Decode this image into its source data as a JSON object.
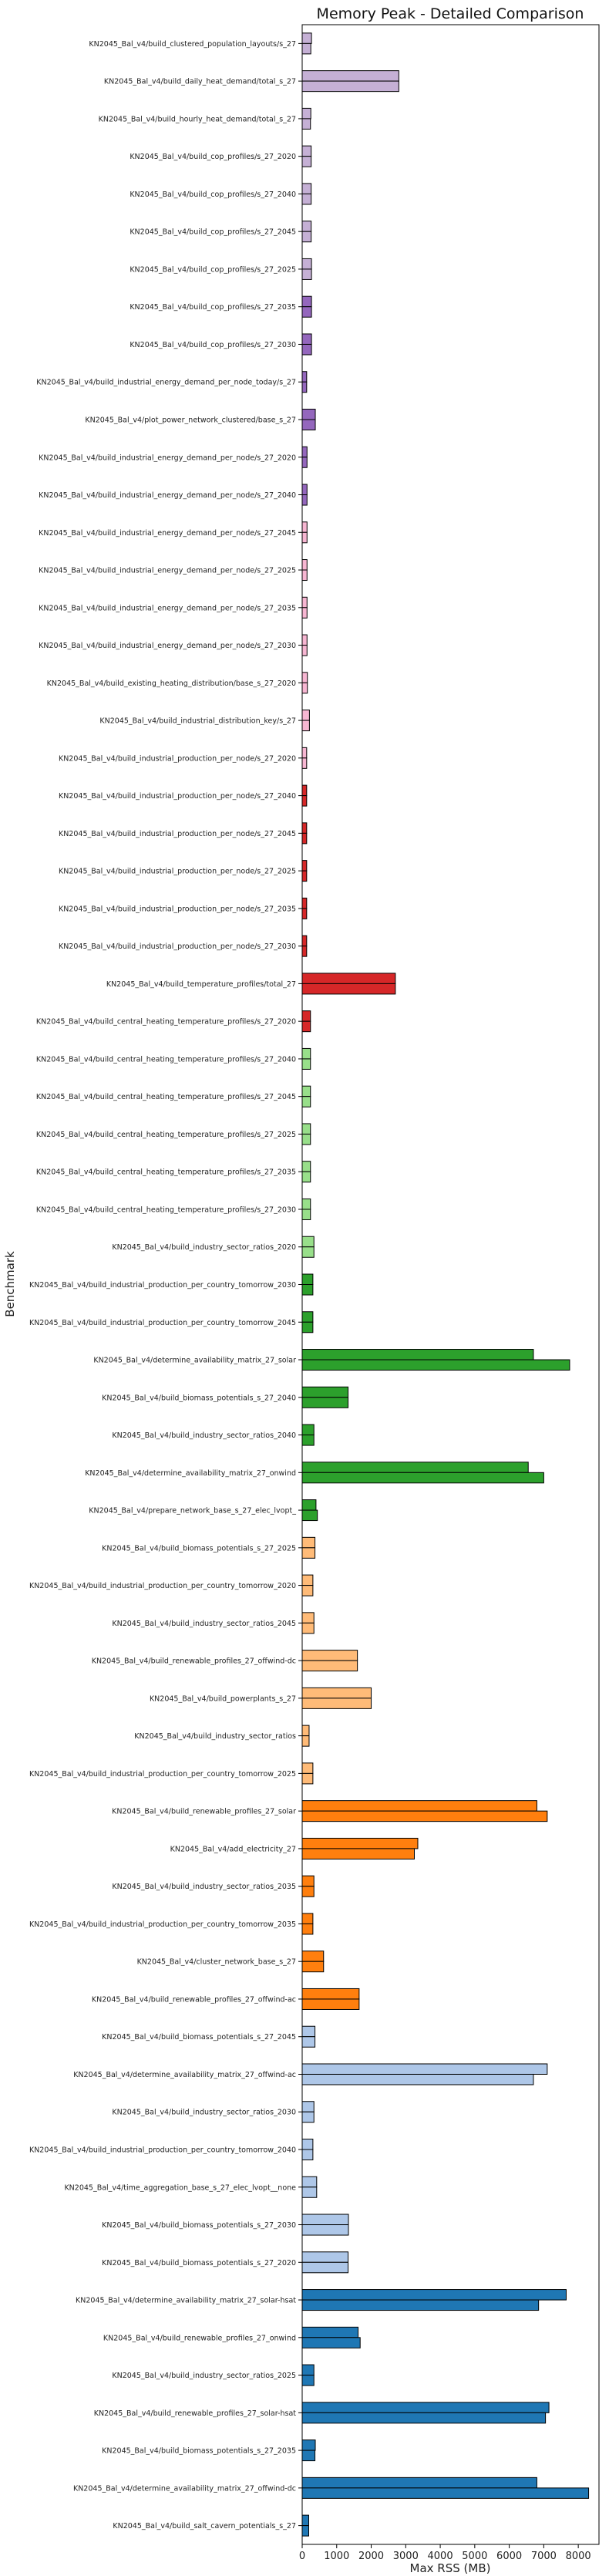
{
  "chart_data": {
    "type": "bar",
    "orientation": "horizontal",
    "title": "Memory Peak - Detailed Comparison",
    "xlabel": "Max RSS (MB)",
    "ylabel": "Benchmark",
    "xlim": [
      0,
      8600
    ],
    "xticks": [
      0,
      1000,
      2000,
      3000,
      4000,
      5000,
      6000,
      7000,
      8000
    ],
    "grid": false,
    "categories": [
      {
        "label": "KN2045_Bal_v4/build_clustered_population_layouts/s_27",
        "color": "#c5b0d5",
        "values": [
          270,
          250
        ]
      },
      {
        "label": "KN2045_Bal_v4/build_daily_heat_demand/total_s_27",
        "color": "#c5b0d5",
        "values": [
          2800,
          2800
        ]
      },
      {
        "label": "KN2045_Bal_v4/build_hourly_heat_demand/total_s_27",
        "color": "#c5b0d5",
        "values": [
          250,
          240
        ]
      },
      {
        "label": "KN2045_Bal_v4/build_cop_profiles/s_27_2020",
        "color": "#c5b0d5",
        "values": [
          260,
          260
        ]
      },
      {
        "label": "KN2045_Bal_v4/build_cop_profiles/s_27_2040",
        "color": "#c5b0d5",
        "values": [
          260,
          260
        ]
      },
      {
        "label": "KN2045_Bal_v4/build_cop_profiles/s_27_2045",
        "color": "#c5b0d5",
        "values": [
          260,
          260
        ]
      },
      {
        "label": "KN2045_Bal_v4/build_cop_profiles/s_27_2025",
        "color": "#c5b0d5",
        "values": [
          270,
          270
        ]
      },
      {
        "label": "KN2045_Bal_v4/build_cop_profiles/s_27_2035",
        "color": "#9467bd",
        "values": [
          270,
          270
        ]
      },
      {
        "label": "KN2045_Bal_v4/build_cop_profiles/s_27_2030",
        "color": "#9467bd",
        "values": [
          270,
          270
        ]
      },
      {
        "label": "KN2045_Bal_v4/build_industrial_energy_demand_per_node_today/s_27",
        "color": "#9467bd",
        "values": [
          130,
          130
        ]
      },
      {
        "label": "KN2045_Bal_v4/plot_power_network_clustered/base_s_27",
        "color": "#9467bd",
        "values": [
          380,
          380
        ]
      },
      {
        "label": "KN2045_Bal_v4/build_industrial_energy_demand_per_node/s_27_2020",
        "color": "#9467bd",
        "values": [
          140,
          140
        ]
      },
      {
        "label": "KN2045_Bal_v4/build_industrial_energy_demand_per_node/s_27_2040",
        "color": "#9467bd",
        "values": [
          140,
          140
        ]
      },
      {
        "label": "KN2045_Bal_v4/build_industrial_energy_demand_per_node/s_27_2045",
        "color": "#f7b6d2",
        "values": [
          140,
          140
        ]
      },
      {
        "label": "KN2045_Bal_v4/build_industrial_energy_demand_per_node/s_27_2025",
        "color": "#f7b6d2",
        "values": [
          140,
          140
        ]
      },
      {
        "label": "KN2045_Bal_v4/build_industrial_energy_demand_per_node/s_27_2035",
        "color": "#f7b6d2",
        "values": [
          140,
          140
        ]
      },
      {
        "label": "KN2045_Bal_v4/build_industrial_energy_demand_per_node/s_27_2030",
        "color": "#f7b6d2",
        "values": [
          140,
          140
        ]
      },
      {
        "label": "KN2045_Bal_v4/build_existing_heating_distribution/base_s_27_2020",
        "color": "#f7b6d2",
        "values": [
          150,
          150
        ]
      },
      {
        "label": "KN2045_Bal_v4/build_industrial_distribution_key/s_27",
        "color": "#f7b6d2",
        "values": [
          210,
          210
        ]
      },
      {
        "label": "KN2045_Bal_v4/build_industrial_production_per_node/s_27_2020",
        "color": "#f7b6d2",
        "values": [
          130,
          130
        ]
      },
      {
        "label": "KN2045_Bal_v4/build_industrial_production_per_node/s_27_2040",
        "color": "#d62728",
        "values": [
          130,
          130
        ]
      },
      {
        "label": "KN2045_Bal_v4/build_industrial_production_per_node/s_27_2045",
        "color": "#d62728",
        "values": [
          130,
          130
        ]
      },
      {
        "label": "KN2045_Bal_v4/build_industrial_production_per_node/s_27_2025",
        "color": "#d62728",
        "values": [
          130,
          130
        ]
      },
      {
        "label": "KN2045_Bal_v4/build_industrial_production_per_node/s_27_2035",
        "color": "#d62728",
        "values": [
          130,
          130
        ]
      },
      {
        "label": "KN2045_Bal_v4/build_industrial_production_per_node/s_27_2030",
        "color": "#d62728",
        "values": [
          130,
          130
        ]
      },
      {
        "label": "KN2045_Bal_v4/build_temperature_profiles/total_27",
        "color": "#d62728",
        "values": [
          2700,
          2700
        ]
      },
      {
        "label": "KN2045_Bal_v4/build_central_heating_temperature_profiles/s_27_2020",
        "color": "#d62728",
        "values": [
          240,
          240
        ]
      },
      {
        "label": "KN2045_Bal_v4/build_central_heating_temperature_profiles/s_27_2040",
        "color": "#98df8a",
        "values": [
          240,
          240
        ]
      },
      {
        "label": "KN2045_Bal_v4/build_central_heating_temperature_profiles/s_27_2045",
        "color": "#98df8a",
        "values": [
          240,
          240
        ]
      },
      {
        "label": "KN2045_Bal_v4/build_central_heating_temperature_profiles/s_27_2025",
        "color": "#98df8a",
        "values": [
          240,
          240
        ]
      },
      {
        "label": "KN2045_Bal_v4/build_central_heating_temperature_profiles/s_27_2035",
        "color": "#98df8a",
        "values": [
          240,
          240
        ]
      },
      {
        "label": "KN2045_Bal_v4/build_central_heating_temperature_profiles/s_27_2030",
        "color": "#98df8a",
        "values": [
          240,
          240
        ]
      },
      {
        "label": "KN2045_Bal_v4/build_industry_sector_ratios_2020",
        "color": "#98df8a",
        "values": [
          340,
          340
        ]
      },
      {
        "label": "KN2045_Bal_v4/build_industrial_production_per_country_tomorrow_2030",
        "color": "#2ca02c",
        "values": [
          310,
          310
        ]
      },
      {
        "label": "KN2045_Bal_v4/build_industrial_production_per_country_tomorrow_2045",
        "color": "#2ca02c",
        "values": [
          310,
          310
        ]
      },
      {
        "label": "KN2045_Bal_v4/determine_availability_matrix_27_solar",
        "color": "#2ca02c",
        "values": [
          6700,
          7750
        ]
      },
      {
        "label": "KN2045_Bal_v4/build_biomass_potentials_s_27_2040",
        "color": "#2ca02c",
        "values": [
          1330,
          1330
        ]
      },
      {
        "label": "KN2045_Bal_v4/build_industry_sector_ratios_2040",
        "color": "#2ca02c",
        "values": [
          340,
          340
        ]
      },
      {
        "label": "KN2045_Bal_v4/determine_availability_matrix_27_onwind",
        "color": "#2ca02c",
        "values": [
          6550,
          7000
        ]
      },
      {
        "label": "KN2045_Bal_v4/prepare_network_base_s_27_elec_lvopt_",
        "color": "#2ca02c",
        "values": [
          400,
          440
        ]
      },
      {
        "label": "KN2045_Bal_v4/build_biomass_potentials_s_27_2025",
        "color": "#ffbb78",
        "values": [
          370,
          370
        ]
      },
      {
        "label": "KN2045_Bal_v4/build_industrial_production_per_country_tomorrow_2020",
        "color": "#ffbb78",
        "values": [
          310,
          310
        ]
      },
      {
        "label": "KN2045_Bal_v4/build_industry_sector_ratios_2045",
        "color": "#ffbb78",
        "values": [
          340,
          340
        ]
      },
      {
        "label": "KN2045_Bal_v4/build_renewable_profiles_27_offwind-dc",
        "color": "#ffbb78",
        "values": [
          1600,
          1600
        ]
      },
      {
        "label": "KN2045_Bal_v4/build_powerplants_s_27",
        "color": "#ffbb78",
        "values": [
          2000,
          2000
        ]
      },
      {
        "label": "KN2045_Bal_v4/build_industry_sector_ratios",
        "color": "#ffbb78",
        "values": [
          200,
          200
        ]
      },
      {
        "label": "KN2045_Bal_v4/build_industrial_production_per_country_tomorrow_2025",
        "color": "#ffbb78",
        "values": [
          310,
          310
        ]
      },
      {
        "label": "KN2045_Bal_v4/build_renewable_profiles_27_solar",
        "color": "#ff7f0e",
        "values": [
          6800,
          7100
        ]
      },
      {
        "label": "KN2045_Bal_v4/add_electricity_27",
        "color": "#ff7f0e",
        "values": [
          3350,
          3250
        ]
      },
      {
        "label": "KN2045_Bal_v4/build_industry_sector_ratios_2035",
        "color": "#ff7f0e",
        "values": [
          340,
          340
        ]
      },
      {
        "label": "KN2045_Bal_v4/build_industrial_production_per_country_tomorrow_2035",
        "color": "#ff7f0e",
        "values": [
          310,
          310
        ]
      },
      {
        "label": "KN2045_Bal_v4/cluster_network_base_s_27",
        "color": "#ff7f0e",
        "values": [
          620,
          620
        ]
      },
      {
        "label": "KN2045_Bal_v4/build_renewable_profiles_27_offwind-ac",
        "color": "#ff7f0e",
        "values": [
          1650,
          1650
        ]
      },
      {
        "label": "KN2045_Bal_v4/build_biomass_potentials_s_27_2045",
        "color": "#aec7e8",
        "values": [
          370,
          370
        ]
      },
      {
        "label": "KN2045_Bal_v4/determine_availability_matrix_27_offwind-ac",
        "color": "#aec7e8",
        "values": [
          7100,
          6700
        ]
      },
      {
        "label": "KN2045_Bal_v4/build_industry_sector_ratios_2030",
        "color": "#aec7e8",
        "values": [
          340,
          340
        ]
      },
      {
        "label": "KN2045_Bal_v4/build_industrial_production_per_country_tomorrow_2040",
        "color": "#aec7e8",
        "values": [
          310,
          310
        ]
      },
      {
        "label": "KN2045_Bal_v4/time_aggregation_base_s_27_elec_lvopt__none",
        "color": "#aec7e8",
        "values": [
          420,
          420
        ]
      },
      {
        "label": "KN2045_Bal_v4/build_biomass_potentials_s_27_2030",
        "color": "#aec7e8",
        "values": [
          1340,
          1340
        ]
      },
      {
        "label": "KN2045_Bal_v4/build_biomass_potentials_s_27_2020",
        "color": "#aec7e8",
        "values": [
          1330,
          1330
        ]
      },
      {
        "label": "KN2045_Bal_v4/determine_availability_matrix_27_solar-hsat",
        "color": "#1f77b4",
        "values": [
          7650,
          6850
        ]
      },
      {
        "label": "KN2045_Bal_v4/build_renewable_profiles_27_onwind",
        "color": "#1f77b4",
        "values": [
          1620,
          1680
        ]
      },
      {
        "label": "KN2045_Bal_v4/build_industry_sector_ratios_2025",
        "color": "#1f77b4",
        "values": [
          340,
          340
        ]
      },
      {
        "label": "KN2045_Bal_v4/build_renewable_profiles_27_solar-hsat",
        "color": "#1f77b4",
        "values": [
          7150,
          7050
        ]
      },
      {
        "label": "KN2045_Bal_v4/build_biomass_potentials_s_27_2035",
        "color": "#1f77b4",
        "values": [
          380,
          370
        ]
      },
      {
        "label": "KN2045_Bal_v4/determine_availability_matrix_27_offwind-dc",
        "color": "#1f77b4",
        "values": [
          6800,
          8300
        ]
      },
      {
        "label": "KN2045_Bal_v4/build_salt_cavern_potentials_s_27",
        "color": "#1f77b4",
        "values": [
          190,
          190
        ]
      }
    ]
  }
}
